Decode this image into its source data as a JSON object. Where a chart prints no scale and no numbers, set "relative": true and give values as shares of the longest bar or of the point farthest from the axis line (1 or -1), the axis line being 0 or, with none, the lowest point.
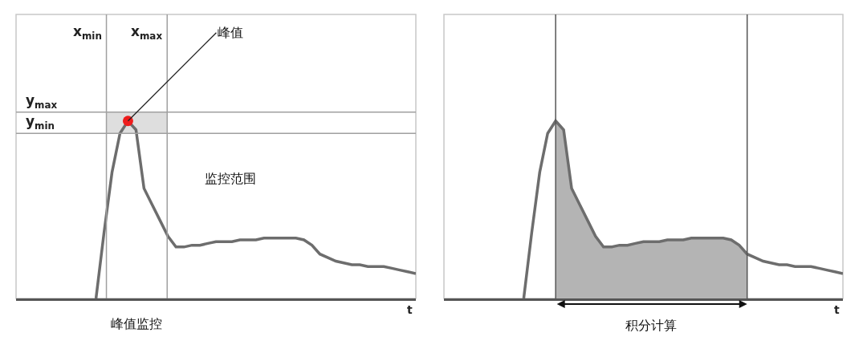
{
  "chart_data": [
    {
      "type": "line",
      "relative": true,
      "xlabel": "t",
      "categories": [
        null,
        null,
        null,
        null,
        null,
        null,
        null,
        null,
        null,
        null,
        null,
        null,
        null,
        null,
        null,
        null,
        null,
        null,
        null,
        null,
        null,
        null,
        null,
        null,
        null,
        null,
        null,
        null,
        null,
        null,
        null,
        null,
        null,
        null,
        null,
        null,
        null,
        null,
        null,
        null,
        null,
        null,
        null,
        null,
        null,
        null,
        null,
        null,
        null,
        null,
        null
      ],
      "series": [
        {
          "color": "#6d6d6d",
          "marker": "none",
          "values": [
            null,
            null,
            null,
            null,
            null,
            null,
            null,
            null,
            null,
            null,
            0,
            0.37,
            0.71,
            0.93,
            1.0,
            0.95,
            0.62,
            0.53,
            0.44,
            0.35,
            0.29,
            0.29,
            0.3,
            0.3,
            0.31,
            0.32,
            0.32,
            0.32,
            0.33,
            0.33,
            0.33,
            0.34,
            0.34,
            0.34,
            0.34,
            0.34,
            0.33,
            0.3,
            0.25,
            0.23,
            0.21,
            0.2,
            0.19,
            0.19,
            0.18,
            0.18,
            0.18,
            0.17,
            0.16,
            0.15,
            0.14
          ]
        }
      ],
      "ref_lines": [
        {
          "axis": "y",
          "value": 1.05,
          "label": "y$_{max}$",
          "color": "#a0a0a0"
        },
        {
          "axis": "y",
          "value": 0.93,
          "label": "y$_{min}$",
          "color": "#a0a0a0"
        }
      ],
      "bands": [
        {
          "axis": "y",
          "from": 0.93,
          "to": 1.05,
          "color": "#dedede"
        }
      ],
      "annotations": [
        "x$_{min}$",
        "x$_{max}$",
        "峰值",
        "峰值监控",
        "监控范围"
      ]
    },
    {
      "type": "line",
      "relative": true,
      "xlabel": "t",
      "categories": [
        null,
        null,
        null,
        null,
        null,
        null,
        null,
        null,
        null,
        null,
        null,
        null,
        null,
        null,
        null,
        null,
        null,
        null,
        null,
        null,
        null,
        null,
        null,
        null,
        null,
        null,
        null,
        null,
        null,
        null,
        null,
        null,
        null,
        null,
        null,
        null,
        null,
        null,
        null,
        null,
        null,
        null,
        null,
        null,
        null,
        null,
        null,
        null,
        null,
        null,
        null
      ],
      "series": [
        {
          "type": "area",
          "color": "#b4b4b4",
          "marker": "none",
          "values": [
            null,
            null,
            null,
            null,
            null,
            null,
            null,
            null,
            null,
            null,
            null,
            null,
            null,
            null,
            1.0,
            0.95,
            0.62,
            0.53,
            0.44,
            0.35,
            0.29,
            0.29,
            0.3,
            0.3,
            0.31,
            0.32,
            0.32,
            0.32,
            0.33,
            0.33,
            0.33,
            0.34,
            0.34,
            0.34,
            0.34,
            0.34,
            0.33,
            0.3,
            0.25,
            null,
            null,
            null,
            null,
            null,
            null,
            null,
            null,
            null,
            null,
            null,
            null
          ]
        },
        {
          "color": "#6d6d6d",
          "marker": "none",
          "values": [
            null,
            null,
            null,
            null,
            null,
            null,
            null,
            null,
            null,
            null,
            0,
            0.37,
            0.71,
            0.93,
            1.0,
            0.95,
            0.62,
            0.53,
            0.44,
            0.35,
            0.29,
            0.29,
            0.3,
            0.3,
            0.31,
            0.32,
            0.32,
            0.32,
            0.33,
            0.33,
            0.33,
            0.34,
            0.34,
            0.34,
            0.34,
            0.34,
            0.33,
            0.3,
            0.25,
            0.23,
            0.21,
            0.2,
            0.19,
            0.19,
            0.18,
            0.18,
            0.18,
            0.17,
            0.16,
            0.15,
            0.14
          ]
        }
      ],
      "annotations": [
        "积分计算"
      ]
    }
  ]
}
